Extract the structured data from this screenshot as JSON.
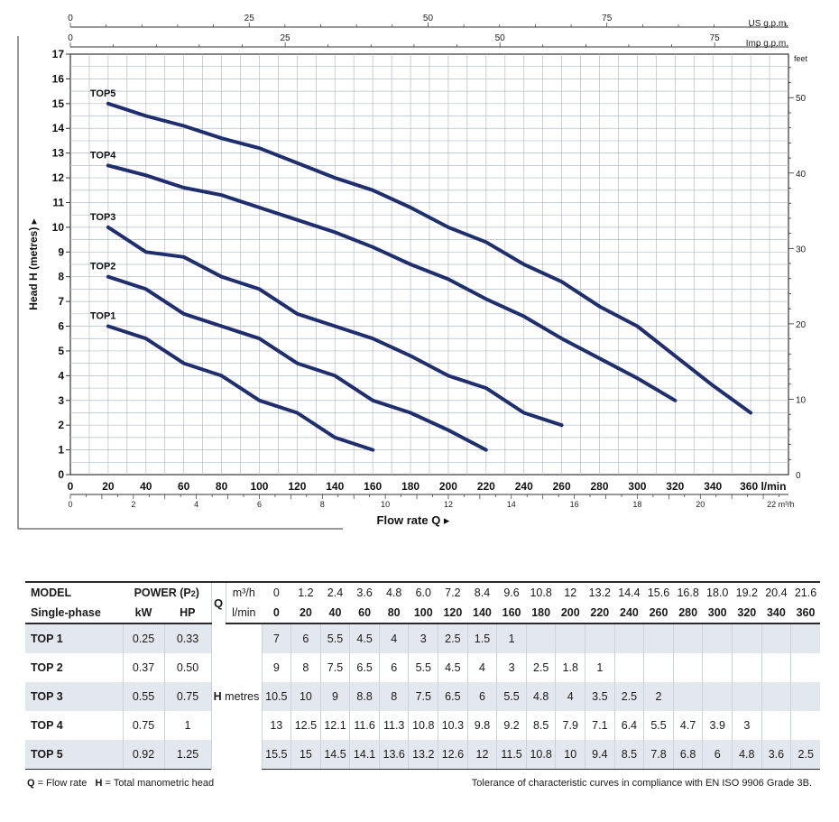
{
  "chart_data": {
    "type": "line",
    "title": "",
    "ylabel": "Head H (metres)",
    "xlabel": "Flow rate Q",
    "xlim": [
      0,
      380
    ],
    "ylim": [
      0,
      17
    ],
    "x_unit": "l/min",
    "y_ticks": [
      0,
      1,
      2,
      3,
      4,
      5,
      6,
      7,
      8,
      9,
      10,
      11,
      12,
      13,
      14,
      15,
      16,
      17
    ],
    "x_ticks": [
      0,
      20,
      40,
      60,
      80,
      100,
      120,
      140,
      160,
      180,
      200,
      220,
      240,
      260,
      280,
      300,
      320,
      340,
      360
    ],
    "x_last_tick_label": "360 l/min",
    "m3h_ticks": [
      0,
      2,
      4,
      6,
      8,
      10,
      12,
      14,
      16,
      18,
      20,
      22
    ],
    "m3h_last_label": "22 m³/h",
    "usgpm_ticks": [
      0,
      25,
      50,
      75
    ],
    "usgpm_unit": "US g.p.m.",
    "impgpm_ticks": [
      0,
      25,
      50,
      75
    ],
    "impgpm_unit": "Imp g.p.m.",
    "feet_ticks": [
      0,
      10,
      20,
      30,
      40,
      50
    ],
    "feet_unit": "feet",
    "series": [
      {
        "name": "TOP1",
        "x": [
          20,
          40,
          60,
          80,
          100,
          120,
          140,
          160
        ],
        "y": [
          6,
          5.5,
          4.5,
          4,
          3,
          2.5,
          1.5,
          1
        ]
      },
      {
        "name": "TOP2",
        "x": [
          20,
          40,
          60,
          80,
          100,
          120,
          140,
          160,
          180,
          200,
          220
        ],
        "y": [
          8,
          7.5,
          6.5,
          6,
          5.5,
          4.5,
          4,
          3,
          2.5,
          1.8,
          1
        ]
      },
      {
        "name": "TOP3",
        "x": [
          20,
          40,
          60,
          80,
          100,
          120,
          140,
          160,
          180,
          200,
          220,
          240,
          260
        ],
        "y": [
          10,
          9,
          8.8,
          8,
          7.5,
          6.5,
          6,
          5.5,
          4.8,
          4,
          3.5,
          2.5,
          2
        ]
      },
      {
        "name": "TOP4",
        "x": [
          20,
          40,
          60,
          80,
          100,
          120,
          140,
          160,
          180,
          200,
          220,
          240,
          260,
          280,
          300,
          320
        ],
        "y": [
          12.5,
          12.1,
          11.6,
          11.3,
          10.8,
          10.3,
          9.8,
          9.2,
          8.5,
          7.9,
          7.1,
          6.4,
          5.5,
          4.7,
          3.9,
          3
        ]
      },
      {
        "name": "TOP5",
        "x": [
          20,
          40,
          60,
          80,
          100,
          120,
          140,
          160,
          180,
          200,
          220,
          240,
          260,
          280,
          300,
          320,
          340,
          360
        ],
        "y": [
          15,
          14.5,
          14.1,
          13.6,
          13.2,
          12.6,
          12,
          11.5,
          10.8,
          10,
          9.4,
          8.5,
          7.8,
          6.8,
          6,
          4.8,
          3.6,
          2.5
        ]
      }
    ]
  },
  "table": {
    "header": {
      "model": "MODEL",
      "single_phase": "Single-phase",
      "power": "POWER (P2)",
      "kw": "kW",
      "hp": "HP",
      "q": "Q",
      "m3h_unit": "m³/h",
      "lmin_unit": "l/min",
      "h_label": "H",
      "h_unit": "metres"
    },
    "m3h": [
      "0",
      "1.2",
      "2.4",
      "3.6",
      "4.8",
      "6.0",
      "7.2",
      "8.4",
      "9.6",
      "10.8",
      "12",
      "13.2",
      "14.4",
      "15.6",
      "16.8",
      "18.0",
      "19.2",
      "20.4",
      "21.6"
    ],
    "lmin": [
      "0",
      "20",
      "40",
      "60",
      "80",
      "100",
      "120",
      "140",
      "160",
      "180",
      "200",
      "220",
      "240",
      "260",
      "280",
      "300",
      "320",
      "340",
      "360"
    ],
    "rows": [
      {
        "model": "TOP 1",
        "kw": "0.25",
        "hp": "0.33",
        "values": [
          "7",
          "6",
          "5.5",
          "4.5",
          "4",
          "3",
          "2.5",
          "1.5",
          "1",
          "",
          "",
          "",
          "",
          "",
          "",
          "",
          "",
          "",
          ""
        ]
      },
      {
        "model": "TOP 2",
        "kw": "0.37",
        "hp": "0.50",
        "values": [
          "9",
          "8",
          "7.5",
          "6.5",
          "6",
          "5.5",
          "4.5",
          "4",
          "3",
          "2.5",
          "1.8",
          "1",
          "",
          "",
          "",
          "",
          "",
          "",
          ""
        ]
      },
      {
        "model": "TOP 3",
        "kw": "0.55",
        "hp": "0.75",
        "values": [
          "10.5",
          "10",
          "9",
          "8.8",
          "8",
          "7.5",
          "6.5",
          "6",
          "5.5",
          "4.8",
          "4",
          "3.5",
          "2.5",
          "2",
          "",
          "",
          "",
          "",
          ""
        ]
      },
      {
        "model": "TOP 4",
        "kw": "0.75",
        "hp": "1",
        "values": [
          "13",
          "12.5",
          "12.1",
          "11.6",
          "11.3",
          "10.8",
          "10.3",
          "9.8",
          "9.2",
          "8.5",
          "7.9",
          "7.1",
          "6.4",
          "5.5",
          "4.7",
          "3.9",
          "3",
          "",
          ""
        ]
      },
      {
        "model": "TOP 5",
        "kw": "0.92",
        "hp": "1.25",
        "values": [
          "15.5",
          "15",
          "14.5",
          "14.1",
          "13.6",
          "13.2",
          "12.6",
          "12",
          "11.5",
          "10.8",
          "10",
          "9.4",
          "8.5",
          "7.8",
          "6.8",
          "6",
          "4.8",
          "3.6",
          "2.5"
        ]
      }
    ]
  },
  "footnotes": {
    "q_key": "Q",
    "q_text": "= Flow rate",
    "h_key": "H",
    "h_text": "= Total manometric head",
    "tolerance": "Tolerance of characteristic curves in compliance with EN ISO 9906 Grade 3B."
  },
  "colors": {
    "curve": "#1f2f6e",
    "grid": "#b4bcc6",
    "shade": "#e3e8ee"
  }
}
